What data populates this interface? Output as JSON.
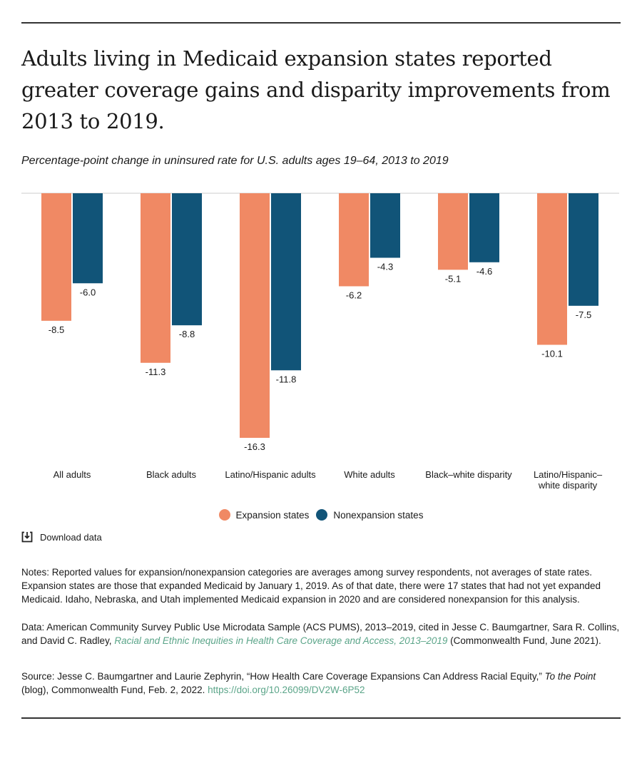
{
  "title": "Adults living in Medicaid expansion states reported greater coverage gains and disparity improvements from 2013 to 2019.",
  "chart_data": {
    "type": "bar",
    "subtitle": "Percentage-point change in uninsured rate for U.S. adults ages 19–64, 2013 to 2019",
    "categories": [
      "All adults",
      "Black adults",
      "Latino/Hispanic adults",
      "White adults",
      "Black–white disparity",
      "Latino/Hispanic–white disparity"
    ],
    "category_lines": [
      [
        "All adults"
      ],
      [
        "Black adults"
      ],
      [
        "Latino/Hispanic adults"
      ],
      [
        "White adults"
      ],
      [
        "Black–white disparity"
      ],
      [
        "Latino/Hispanic–",
        "white disparity"
      ]
    ],
    "series": [
      {
        "name": "Expansion states",
        "color": "#f08964",
        "values": [
          -8.5,
          -11.3,
          -16.3,
          -6.2,
          -5.1,
          -10.1
        ],
        "labels": [
          "-8.5",
          "-11.3",
          "-16.3",
          "-6.2",
          "-5.1",
          "-10.1"
        ]
      },
      {
        "name": "Nonexpansion states",
        "color": "#115478",
        "values": [
          -6.0,
          -8.8,
          -11.8,
          -4.3,
          -4.6,
          -7.5
        ],
        "labels": [
          "-6.0",
          "-8.8",
          "-11.8",
          "-4.3",
          "-4.6",
          "-7.5"
        ]
      }
    ],
    "ylim": [
      -16.3,
      0
    ],
    "grid": false,
    "legend_position": "bottom"
  },
  "download": {
    "label": "Download data",
    "icon": "download-icon"
  },
  "notes": {
    "notes_text": "Notes: Reported values for expansion/nonexpansion categories are averages among survey respondents, not averages of state rates. Expansion states are those that expanded Medicaid by January 1, 2019. As of that date, there were 17 states that had not yet expanded Medicaid. Idaho, Nebraska, and Utah implemented Medicaid expansion in 2020 and are considered nonexpansion for this analysis.",
    "data_prefix": "Data: American Community Survey Public Use Microdata Sample (ACS PUMS), 2013–2019, cited in Jesse C. Baumgartner, Sara R. Collins, and David C. Radley, ",
    "data_link": "Racial and Ethnic Inequities in Health Care Coverage and Access, 2013–2019",
    "data_suffix": " (Commonwealth Fund, June 2021).",
    "source_prefix": "Source: Jesse C. Baumgartner and Laurie Zephyrin, “How Health Care Coverage Expansions Can Address Racial Equity,” ",
    "source_italic": "To the Point",
    "source_mid": " (blog), Commonwealth Fund, Feb. 2, 2022. ",
    "source_link": "https://doi.org/10.26099/DV2W-6P52"
  },
  "colors": {
    "link": "#5ba589",
    "rule": "#333333"
  }
}
